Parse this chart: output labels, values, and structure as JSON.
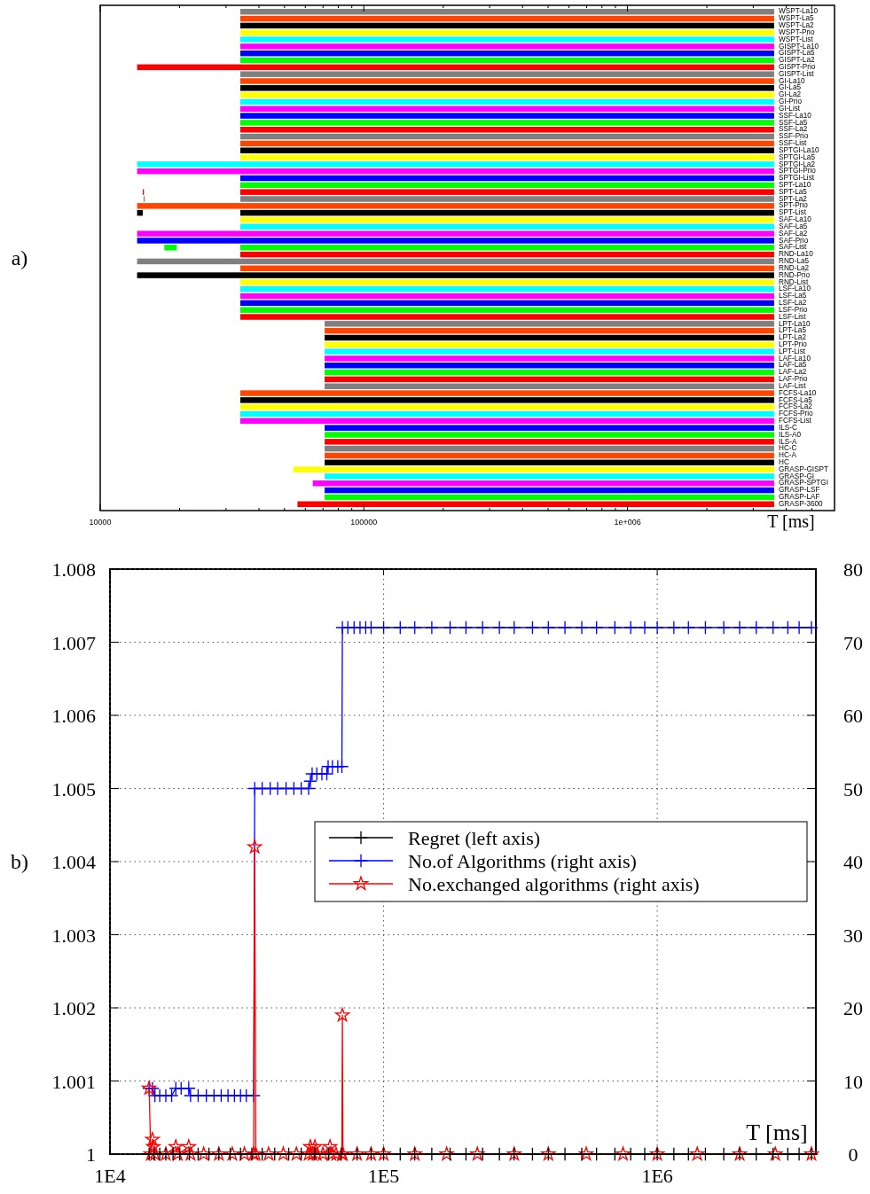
{
  "chart_data": [
    {
      "type": "bar",
      "orientation": "horizontal",
      "log": "x",
      "xlabel": "T [ms]",
      "annotations": [
        "a)"
      ],
      "categories": [
        "WSPT-La10",
        "WSPT-La5",
        "WSPT-La2",
        "WSPT-Prio",
        "WSPT-List",
        "GISPT-La10",
        "GISPT-La5",
        "GISPT-La2",
        "GISPT-Prio",
        "GISPT-List",
        "GI-La10",
        "GI-La5",
        "GI-La2",
        "GI-Prio",
        "GI-List",
        "SSF-La10",
        "SSF-La5",
        "SSF-La2",
        "SSF-Prio",
        "SSF-List",
        "SPTGI-La10",
        "SPTGI-La5",
        "SPTGI-La2",
        "SPTGI-Prio",
        "SPTGI-List",
        "SPT-La10",
        "SPT-La5",
        "SPT-La2",
        "SPT-Prio",
        "SPT-List",
        "SAF-La10",
        "SAF-La5",
        "SAF-La2",
        "SAF-Prio",
        "SAF-List",
        "RND-La10",
        "RND-La5",
        "RND-La2",
        "RND-Prio",
        "RND-List",
        "LSF-La10",
        "LSF-La5",
        "LSF-La2",
        "LSF-Prio",
        "LSF-List",
        "LPT-La10",
        "LPT-La5",
        "LPT-La2",
        "LPT-Prio",
        "LPT-List",
        "LAF-La10",
        "LAF-La5",
        "LAF-La2",
        "LAF-Prio",
        "LAF-List",
        "FCFS-La10",
        "FCFS-La5",
        "FCFS-La2",
        "FCFS-Prio",
        "FCFS-List",
        "ILS-C",
        "ILS-A0",
        "ILS-A",
        "HC-C",
        "HC-A",
        "HC",
        "GRASP-GISPT",
        "GRASP-GI",
        "GRASP-SPTGI",
        "GRASP-LSF",
        "GRASP-LAF",
        "GRASP-3600"
      ],
      "xlim": [
        10000,
        6100000
      ],
      "xticks": [
        10000,
        {
          "value": 20000,
          "label": null
        },
        {
          "value": 30000,
          "label": null
        },
        {
          "value": 40000,
          "label": null
        },
        {
          "value": 50000,
          "label": null
        },
        {
          "value": 60000,
          "label": null
        },
        {
          "value": 70000,
          "label": null
        },
        {
          "value": 80000,
          "label": null
        },
        {
          "value": 90000,
          "label": null
        },
        100000,
        {
          "value": 200000,
          "label": null
        },
        {
          "value": 300000,
          "label": null
        },
        {
          "value": 400000,
          "label": null
        },
        {
          "value": 500000,
          "label": null
        },
        {
          "value": 600000,
          "label": null
        },
        {
          "value": 700000,
          "label": null
        },
        {
          "value": 800000,
          "label": null
        },
        {
          "value": 900000,
          "label": null
        },
        {
          "value": 1000000,
          "label": "1e+006"
        },
        {
          "value": 2000000,
          "label": null
        },
        {
          "value": 3000000,
          "label": null
        },
        {
          "value": 4000000,
          "label": null
        },
        {
          "value": 5000000,
          "label": null
        }
      ],
      "series": [
        {
          "colors": [
            "#808080",
            "#ff4500",
            "#000000",
            "#ffff00",
            "#00ffff",
            "#ff00ff",
            "#0000ff",
            "#00ff00",
            "#ff0000",
            "#808080",
            "#ff4500",
            "#000000",
            "#ffff00",
            "#00ffff",
            "#ff00ff",
            "#0000ff",
            "#00ff00",
            "#ff0000",
            "#808080",
            "#ff4500",
            "#000000",
            "#ffff00",
            "#00ffff",
            "#ff00ff",
            "#0000ff",
            "#00ff00",
            "#ff0000",
            "#808080",
            "#ff4500",
            "#000000",
            "#ffff00",
            "#00ffff",
            "#ff00ff",
            "#0000ff",
            "#00ff00",
            "#ff0000",
            "#808080",
            "#ff4500",
            "#000000",
            "#ffff00",
            "#00ffff",
            "#ff00ff",
            "#0000ff",
            "#00ff00",
            "#ff0000",
            "#808080",
            "#ff4500",
            "#000000",
            "#ffff00",
            "#00ffff",
            "#ff00ff",
            "#0000ff",
            "#00ff00",
            "#ff0000",
            "#808080",
            "#ff4500",
            "#000000",
            "#ffff00",
            "#00ffff",
            "#ff00ff",
            "#0000ff",
            "#00ff00",
            "#ff0000",
            "#808080",
            "#ff4500",
            "#000000",
            "#ffff00",
            "#00ffff",
            "#ff00ff",
            "#0000ff",
            "#00ff00",
            "#ff0000"
          ],
          "base": [
            34000,
            34000,
            34000,
            34000,
            34000,
            34000,
            34000,
            34000,
            13800,
            34000,
            34000,
            34000,
            34000,
            34000,
            34000,
            34000,
            34000,
            34000,
            34000,
            34000,
            34000,
            34000,
            13800,
            13800,
            34000,
            34000,
            34000,
            34000,
            13800,
            34000,
            34000,
            34000,
            13800,
            13800,
            34000,
            34000,
            13800,
            34000,
            13800,
            34000,
            34000,
            34000,
            34000,
            34000,
            34000,
            71000,
            71000,
            71000,
            71000,
            71000,
            71000,
            71000,
            71000,
            71000,
            71000,
            34000,
            34000,
            34000,
            34000,
            34000,
            71000,
            71000,
            71000,
            71000,
            71000,
            71000,
            54000,
            71000,
            64000,
            71000,
            71000,
            56000
          ],
          "values": [
            3566000,
            3566000,
            3566000,
            3566000,
            3566000,
            3566000,
            3566000,
            3566000,
            3586200,
            3566000,
            3566000,
            3566000,
            3566000,
            3566000,
            3566000,
            3566000,
            3566000,
            3566000,
            3566000,
            3566000,
            3566000,
            3566000,
            3586200,
            3586200,
            3566000,
            3566000,
            3566000,
            3566000,
            3586200,
            3566000,
            3566000,
            3566000,
            3586200,
            3586200,
            3566000,
            3566000,
            3586200,
            3566000,
            3586200,
            3566000,
            3566000,
            3566000,
            3566000,
            3566000,
            3566000,
            3529000,
            3529000,
            3529000,
            3529000,
            3529000,
            3529000,
            3529000,
            3529000,
            3529000,
            3529000,
            3566000,
            3566000,
            3566000,
            3566000,
            3566000,
            3529000,
            3529000,
            3529000,
            3529000,
            3529000,
            3529000,
            3546000,
            3529000,
            3536000,
            3529000,
            3529000,
            3544000
          ]
        },
        {
          "colors": [
            null,
            null,
            null,
            null,
            null,
            null,
            null,
            null,
            null,
            null,
            null,
            null,
            null,
            null,
            null,
            null,
            null,
            null,
            null,
            null,
            null,
            null,
            null,
            null,
            null,
            null,
            "#ff0000",
            "#808080",
            null,
            "#000000",
            null,
            null,
            null,
            null,
            "#00ff00",
            null,
            null,
            null,
            null,
            null,
            null,
            null,
            null,
            null,
            null,
            null,
            null,
            null,
            null,
            null,
            null,
            null,
            null,
            null,
            null,
            null,
            null,
            null,
            null,
            null,
            null,
            null,
            null,
            null,
            null,
            null,
            null,
            null,
            null,
            null,
            null,
            null
          ],
          "base": [
            null,
            null,
            null,
            null,
            null,
            null,
            null,
            null,
            null,
            null,
            null,
            null,
            null,
            null,
            null,
            null,
            null,
            null,
            null,
            null,
            null,
            null,
            null,
            null,
            null,
            null,
            14500,
            14600,
            null,
            13800,
            null,
            null,
            null,
            null,
            17500,
            null,
            null,
            null,
            null,
            null,
            null,
            null,
            null,
            null,
            null,
            null,
            null,
            null,
            null,
            null,
            null,
            null,
            null,
            null,
            null,
            null,
            null,
            null,
            null,
            null,
            null,
            null,
            null,
            null,
            null,
            null,
            null,
            null,
            null,
            null,
            null,
            null
          ],
          "values": [
            null,
            null,
            null,
            null,
            null,
            null,
            null,
            null,
            null,
            null,
            null,
            null,
            null,
            null,
            null,
            null,
            null,
            null,
            null,
            null,
            null,
            null,
            null,
            null,
            null,
            null,
            150,
            150,
            null,
            700,
            null,
            null,
            null,
            null,
            2000,
            null,
            null,
            null,
            null,
            null,
            null,
            null,
            null,
            null,
            null,
            null,
            null,
            null,
            null,
            null,
            null,
            null,
            null,
            null,
            null,
            null,
            null,
            null,
            null,
            null,
            null,
            null,
            null,
            null,
            null,
            null,
            null,
            null,
            null,
            null,
            null,
            null
          ]
        }
      ]
    },
    {
      "type": "line",
      "log": "x",
      "xlabel": "T [ms]",
      "annotations": [
        "b)"
      ],
      "grid": true,
      "legend": "right",
      "xlim": [
        10000,
        3800000
      ],
      "xticks": [
        {
          "value": 10000,
          "label": "1E4"
        },
        {
          "value": 100000,
          "label": "1E5"
        },
        {
          "value": 1000000,
          "label": "1E6"
        }
      ],
      "ylim": [
        1,
        1.008
      ],
      "yticks": [
        1,
        1.001,
        1.002,
        1.003,
        1.004,
        1.005,
        1.006,
        1.007,
        1.008
      ],
      "y2lim": [
        0,
        80
      ],
      "y2ticks": [
        0,
        10,
        20,
        30,
        40,
        50,
        60,
        70,
        80
      ],
      "series": [
        {
          "name": "Regret (left axis)",
          "color": "#000000",
          "marker": "cross",
          "x": [
            13900,
            14500,
            15200,
            16000,
            17000,
            18000,
            19500,
            21000,
            23000,
            25000,
            27500,
            30000,
            33000,
            36000,
            40000,
            45000,
            50000,
            56000,
            63000,
            70000,
            80000,
            90000,
            100000,
            115000,
            130000,
            150000,
            175000,
            200000,
            230000,
            265000,
            300000,
            350000,
            400000,
            460000,
            530000,
            600000,
            700000,
            800000,
            900000,
            1000000,
            1150000,
            1300000,
            1500000,
            1750000,
            2000000,
            2300000,
            2650000,
            3000000,
            3300000,
            3660000
          ],
          "values": [
            1,
            1,
            1,
            1,
            1,
            1,
            1,
            1,
            1,
            1,
            1,
            1,
            1,
            1,
            1,
            1,
            1,
            1,
            1,
            1,
            1,
            1,
            1,
            1,
            1,
            1,
            1,
            1,
            1,
            1,
            1,
            1,
            1,
            1,
            1,
            1,
            1,
            1,
            1,
            1,
            1,
            1,
            1,
            1,
            1,
            1,
            1,
            1,
            1,
            1
          ]
        },
        {
          "name": "No.of Algorithms (right axis)",
          "color": "#0000ff",
          "marker": "cross",
          "axis": "y2",
          "x": [
            13900,
            14300,
            14600,
            15200,
            16000,
            16800,
            17400,
            18200,
            19400,
            19700,
            21000,
            22500,
            24000,
            25500,
            27000,
            28500,
            30000,
            31500,
            33500,
            33800,
            36000,
            38500,
            41000,
            44000,
            47000,
            50000,
            53200,
            54000,
            54800,
            57000,
            59500,
            62000,
            62700,
            65000,
            68000,
            70400,
            70700,
            74000,
            78000,
            82000,
            86000,
            90000,
            100000,
            115000,
            130000,
            150000,
            175000,
            200000,
            230000,
            265000,
            300000,
            350000,
            400000,
            460000,
            530000,
            600000,
            700000,
            800000,
            900000,
            1000000,
            1150000,
            1300000,
            1500000,
            1750000,
            2000000,
            2300000,
            2650000,
            3000000,
            3300000,
            3660000
          ],
          "values": [
            9,
            9,
            8,
            8,
            8,
            8,
            9,
            9,
            9,
            8,
            8,
            8,
            8,
            8,
            8,
            8,
            8,
            8,
            8,
            50,
            50,
            50,
            50,
            50,
            50,
            50,
            50,
            51,
            52,
            52,
            52,
            52,
            53,
            53,
            53,
            53,
            72,
            72,
            72,
            72,
            72,
            72,
            72,
            72,
            72,
            72,
            72,
            72,
            72,
            72,
            72,
            72,
            72,
            72,
            72,
            72,
            72,
            72,
            72,
            72,
            72,
            72,
            72,
            72,
            72,
            72,
            72,
            72,
            72,
            72
          ]
        },
        {
          "name": "No.exchanged algorithms (right axis)",
          "color": "#ff0000",
          "marker": "star",
          "axis": "y2",
          "x": [
            13900,
            14100,
            14300,
            14400,
            14600,
            16000,
            17400,
            17700,
            19400,
            19700,
            22000,
            25000,
            28000,
            31000,
            33500,
            33800,
            34100,
            38000,
            43000,
            48000,
            53200,
            54000,
            55000,
            56100,
            57000,
            60000,
            63700,
            64500,
            67000,
            70400,
            70700,
            71000,
            80000,
            90000,
            100000,
            130000,
            170000,
            220000,
            300000,
            400000,
            550000,
            750000,
            1000000,
            1400000,
            2000000,
            2700000,
            3660000
          ],
          "values": [
            9,
            0,
            2,
            1,
            0,
            0,
            1,
            0,
            1,
            0,
            0,
            0,
            0,
            0,
            0,
            42,
            0,
            0,
            0,
            0,
            0,
            1,
            0,
            1,
            0,
            0,
            1,
            0,
            0,
            0,
            19,
            0,
            0,
            0,
            0,
            0,
            0,
            0,
            0,
            0,
            0,
            0,
            0,
            0,
            0,
            0,
            0
          ]
        }
      ]
    }
  ]
}
